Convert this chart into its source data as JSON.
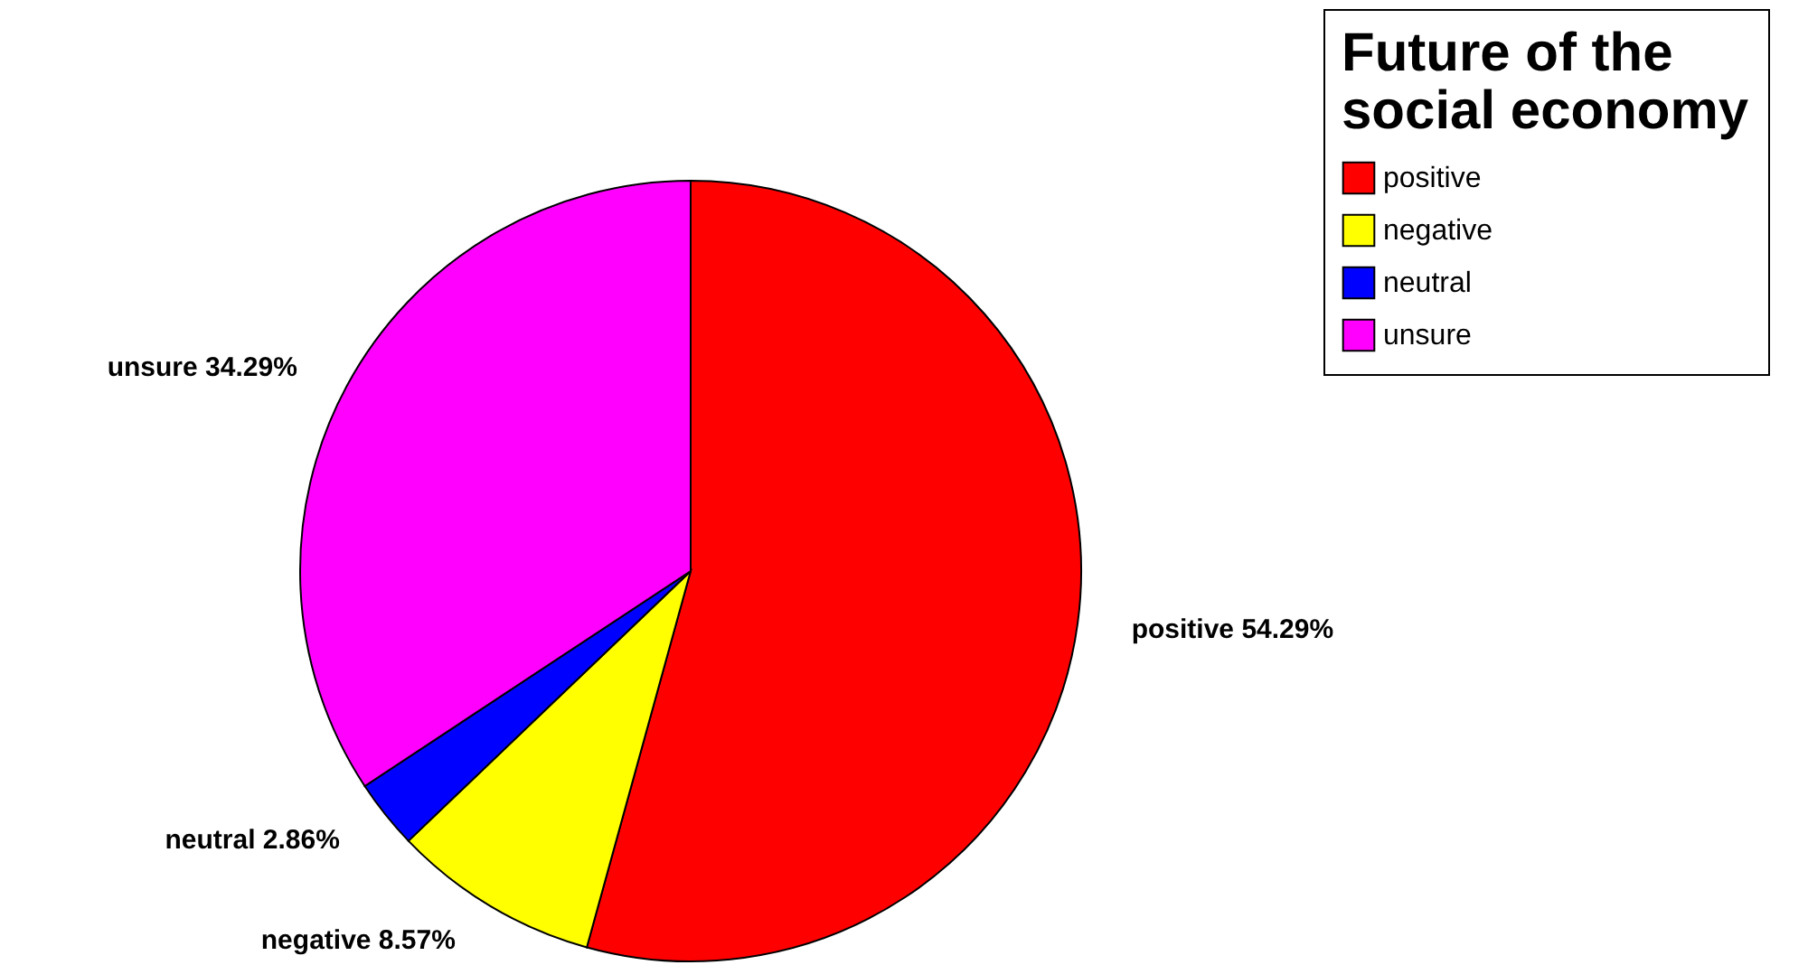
{
  "chart_data": {
    "type": "pie",
    "legend_title": "Future of the social economy",
    "categories": [
      "positive",
      "negative",
      "neutral",
      "unsure"
    ],
    "values": [
      54.29,
      8.57,
      2.86,
      34.29
    ],
    "colors": [
      "#ff0000",
      "#ffff00",
      "#0000ff",
      "#ff00ff"
    ],
    "value_labels": [
      "54.29%",
      "8.57%",
      "2.86%",
      "34.29%"
    ],
    "legend": "top right"
  }
}
